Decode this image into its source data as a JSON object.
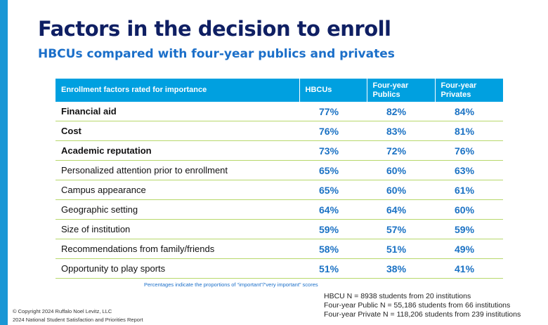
{
  "title": "Factors in the decision to enroll",
  "subtitle": "HBCUs compared with four-year publics and privates",
  "colors": {
    "accent": "#1a97d5",
    "title": "#0f1f63",
    "header_bg": "#00a0e0",
    "value": "#1b72c4",
    "row_line": "#b7d86b"
  },
  "table": {
    "headers": [
      "Enrollment factors rated for importance",
      "HBCUs",
      "Four-year Publics",
      "Four-year Privates"
    ],
    "rows": [
      {
        "factor": "Financial aid",
        "hbcu": "77%",
        "publics": "82%",
        "privates": "84%",
        "bold": true
      },
      {
        "factor": "Cost",
        "hbcu": "76%",
        "publics": "83%",
        "privates": "81%",
        "bold": true
      },
      {
        "factor": "Academic reputation",
        "hbcu": "73%",
        "publics": "72%",
        "privates": "76%",
        "bold": true
      },
      {
        "factor": "Personalized attention prior to enrollment",
        "hbcu": "65%",
        "publics": "60%",
        "privates": "63%",
        "bold": false
      },
      {
        "factor": "Campus appearance",
        "hbcu": "65%",
        "publics": "60%",
        "privates": "61%",
        "bold": false
      },
      {
        "factor": "Geographic setting",
        "hbcu": "64%",
        "publics": "64%",
        "privates": "60%",
        "bold": false
      },
      {
        "factor": "Size of institution",
        "hbcu": "59%",
        "publics": "57%",
        "privates": "59%",
        "bold": false
      },
      {
        "factor": "Recommendations from family/friends",
        "hbcu": "58%",
        "publics": "51%",
        "privates": "49%",
        "bold": false
      },
      {
        "factor": "Opportunity to play sports",
        "hbcu": "51%",
        "publics": "38%",
        "privates": "41%",
        "bold": false
      }
    ]
  },
  "note": "Percentages indicate the proportions of “important”/“very important” scores",
  "sample_sizes": [
    "HBCU N = 8938 students from 20 institutions",
    "Four-year Public N = 55,186 students from 66 institutions",
    "Four-year Private N = 118,206 students from 239 institutions"
  ],
  "copyright": "© Copyright 2024 Ruffalo Noel Levitz, LLC",
  "report": "2024 National Student Satisfaction and Priorities Report"
}
